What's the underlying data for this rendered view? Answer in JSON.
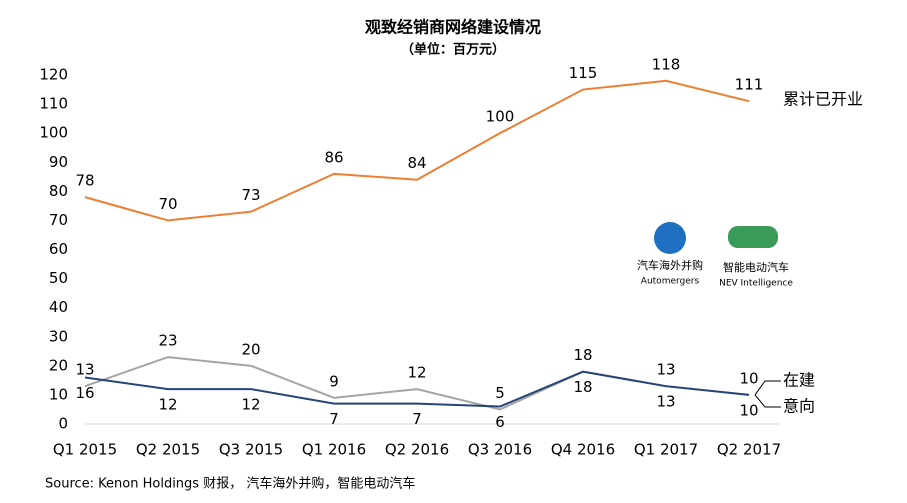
{
  "chart_data": {
    "type": "line",
    "title": "观致经销商网络建设情况",
    "subtitle": "（单位：百万元）",
    "source": "Source: Kenon Holdings 财报， 汽车海外并购，智能电动汽车",
    "annotations": [
      "汽车海外并购",
      "Automergers",
      "智能电动汽车",
      "NEV Intelligence"
    ],
    "categories": [
      "Q1 2015",
      "Q2 2015",
      "Q3 2015",
      "Q1 2016",
      "Q2 2016",
      "Q3 2016",
      "Q4 2016",
      "Q1 2017",
      "Q2 2017"
    ],
    "series": [
      {
        "name": "累计已开业",
        "color": "#ed7d31",
        "values": [
          78,
          70,
          73,
          86,
          84,
          100,
          115,
          118,
          111
        ]
      },
      {
        "name": "在建",
        "color": "#a5a5a5",
        "values": [
          13,
          23,
          20,
          9,
          12,
          5,
          18,
          13,
          10
        ]
      },
      {
        "name": "意向",
        "color": "#264478",
        "values": [
          16,
          12,
          12,
          7,
          7,
          6,
          18,
          13,
          10
        ]
      }
    ],
    "ylim": [
      0,
      120
    ],
    "yticks": [
      0,
      10,
      20,
      30,
      40,
      50,
      60,
      70,
      80,
      90,
      100,
      110,
      120
    ],
    "grid": false,
    "legend": "right"
  }
}
